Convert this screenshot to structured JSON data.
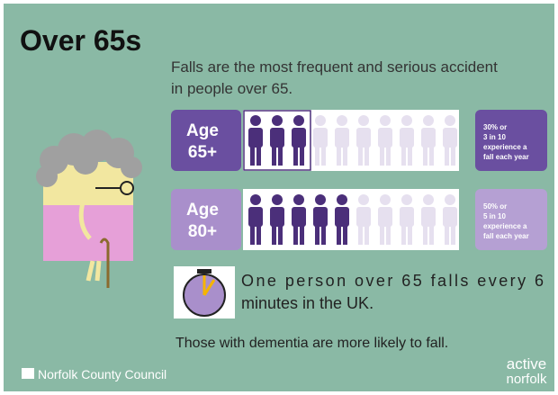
{
  "title": "Over 65s",
  "intro": [
    "Falls are the most frequent and serious accident",
    "in people over 65."
  ],
  "rows": [
    {
      "age": [
        "Age",
        "65+"
      ],
      "filled": 3,
      "total": 10,
      "note": [
        "30% or",
        "3 in 10",
        "experience a",
        "fall each year"
      ]
    },
    {
      "age": [
        "Age",
        "80+"
      ],
      "filled": 5,
      "total": 10,
      "note": [
        "50% or",
        "5 in 10",
        "experience a",
        "fall each year"
      ]
    }
  ],
  "stat": [
    "One person over 65 falls every 6",
    "minutes in the UK."
  ],
  "dementia": "Those with dementia are more likely to fall.",
  "footer": {
    "council": "Norfolk County Council",
    "brand": [
      "active",
      "norfolk"
    ]
  }
}
